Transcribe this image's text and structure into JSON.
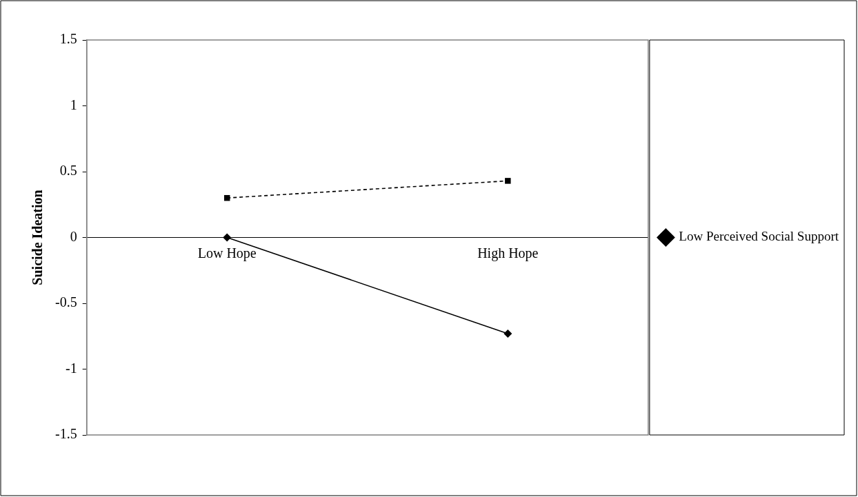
{
  "chart_data": {
    "type": "line",
    "ylabel": "Suicide Ideation",
    "categories": [
      "Low Hope",
      "High Hope"
    ],
    "series": [
      {
        "name": "Low Perceived Social Support",
        "color": "#000000",
        "values": [
          0.0,
          -0.73
        ],
        "marker": "diamond",
        "line_style": "solid"
      },
      {
        "color": "#000000",
        "values": [
          0.3,
          0.43
        ],
        "marker": "square",
        "line_style": "dashed"
      }
    ],
    "ylim": [
      -1.5,
      1.5
    ],
    "yticks": [
      -1.5,
      -1,
      -0.5,
      0,
      0.5,
      1,
      1.5
    ],
    "grid": false,
    "legend": "right"
  }
}
